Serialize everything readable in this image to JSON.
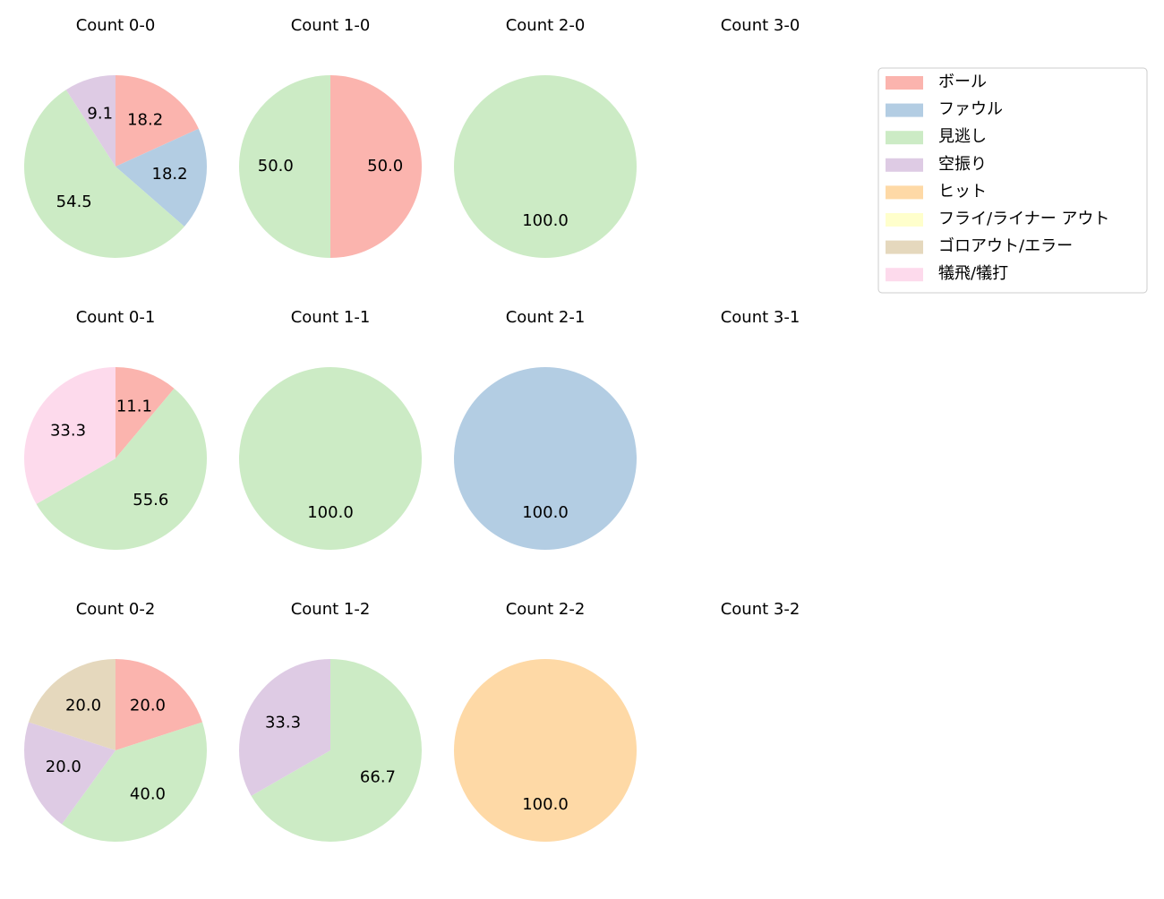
{
  "chart_data": [
    {
      "type": "pie",
      "title": "Count 0-0",
      "categories": [
        "ボール",
        "ファウル",
        "見逃し",
        "空振り"
      ],
      "values": [
        18.2,
        18.2,
        54.5,
        9.1
      ],
      "value_labels": [
        "18.2",
        "18.2",
        "54.5",
        "9.1"
      ],
      "colors": [
        "#fbb4ae",
        "#b3cde3",
        "#ccebc5",
        "#decbe4"
      ]
    },
    {
      "type": "pie",
      "title": "Count 1-0",
      "categories": [
        "ボール",
        "見逃し"
      ],
      "values": [
        50,
        50
      ],
      "value_labels": [
        "50.0",
        "50.0"
      ],
      "colors": [
        "#fbb4ae",
        "#ccebc5"
      ]
    },
    {
      "type": "pie",
      "title": "Count 2-0",
      "categories": [
        "見逃し"
      ],
      "values": [
        100
      ],
      "value_labels": [
        "100.0"
      ],
      "colors": [
        "#ccebc5"
      ]
    },
    {
      "type": "pie",
      "title": "Count 3-0",
      "categories": [],
      "values": [],
      "value_labels": [],
      "colors": []
    },
    {
      "type": "pie",
      "title": "Count 0-1",
      "categories": [
        "ボール",
        "見逃し",
        "犠飛/犠打"
      ],
      "values": [
        11.1,
        55.6,
        33.3
      ],
      "value_labels": [
        "11.1",
        "55.6",
        "33.3"
      ],
      "colors": [
        "#fbb4ae",
        "#ccebc5",
        "#fddaec"
      ]
    },
    {
      "type": "pie",
      "title": "Count 1-1",
      "categories": [
        "見逃し"
      ],
      "values": [
        100
      ],
      "value_labels": [
        "100.0"
      ],
      "colors": [
        "#ccebc5"
      ]
    },
    {
      "type": "pie",
      "title": "Count 2-1",
      "categories": [
        "ファウル"
      ],
      "values": [
        100
      ],
      "value_labels": [
        "100.0"
      ],
      "colors": [
        "#b3cde3"
      ]
    },
    {
      "type": "pie",
      "title": "Count 3-1",
      "categories": [],
      "values": [],
      "value_labels": [],
      "colors": []
    },
    {
      "type": "pie",
      "title": "Count 0-2",
      "categories": [
        "ボール",
        "見逃し",
        "空振り",
        "ゴロアウト/エラー"
      ],
      "values": [
        20,
        40,
        20,
        20
      ],
      "value_labels": [
        "20.0",
        "40.0",
        "20.0",
        "20.0"
      ],
      "colors": [
        "#fbb4ae",
        "#ccebc5",
        "#decbe4",
        "#e5d8bd"
      ]
    },
    {
      "type": "pie",
      "title": "Count 1-2",
      "categories": [
        "見逃し",
        "空振り"
      ],
      "values": [
        66.7,
        33.3
      ],
      "value_labels": [
        "66.7",
        "33.3"
      ],
      "colors": [
        "#ccebc5",
        "#decbe4"
      ]
    },
    {
      "type": "pie",
      "title": "Count 2-2",
      "categories": [
        "ヒット"
      ],
      "values": [
        100
      ],
      "value_labels": [
        "100.0"
      ],
      "colors": [
        "#fed9a6"
      ]
    },
    {
      "type": "pie",
      "title": "Count 3-2",
      "categories": [],
      "values": [],
      "value_labels": [],
      "colors": []
    }
  ],
  "legend": {
    "position": "upper right",
    "entries": [
      {
        "name": "ボール",
        "color": "#fbb4ae"
      },
      {
        "name": "ファウル",
        "color": "#b3cde3"
      },
      {
        "name": "見逃し",
        "color": "#ccebc5"
      },
      {
        "name": "空振り",
        "color": "#decbe4"
      },
      {
        "name": "ヒット",
        "color": "#fed9a6"
      },
      {
        "name": "フライ/ライナー アウト",
        "color": "#ffffcc"
      },
      {
        "name": "ゴロアウト/エラー",
        "color": "#e5d8bd"
      },
      {
        "name": "犠飛/犠打",
        "color": "#fddaec"
      }
    ]
  }
}
